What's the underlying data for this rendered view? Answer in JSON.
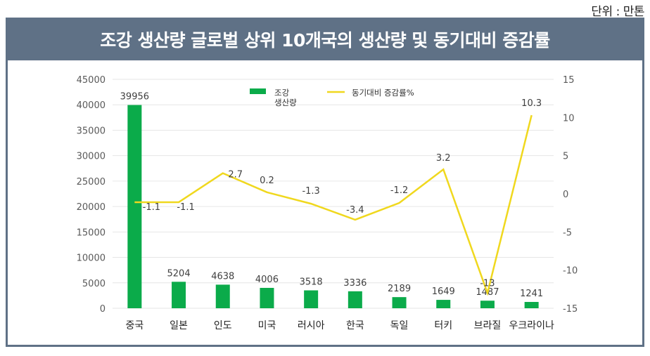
{
  "unit_label": "단위 : 만톤",
  "title": "조강 생산량 글로벌 상위 10개국의 생산량 및 동기대비 증감률",
  "colors": {
    "frame": "#5f7186",
    "bar": "#0bab4a",
    "line": "#f0d81e",
    "grid": "#e6e6e6"
  },
  "chart_data": {
    "type": "bar+line",
    "title": "조강 생산량 글로벌 상위 10개국의 생산량 및 동기대비 증감률",
    "categories": [
      "중국",
      "일본",
      "인도",
      "미국",
      "러시아",
      "한국",
      "독일",
      "터키",
      "브라질",
      "우크라이나"
    ],
    "series": [
      {
        "name": "조강 생산량",
        "type": "bar",
        "axis": "left",
        "values": [
          39956,
          5204,
          4638,
          4006,
          3518,
          3336,
          2189,
          1649,
          1487,
          1241
        ],
        "labels": [
          "39956",
          "5204",
          "4638",
          "4006",
          "3518",
          "3336",
          "2189",
          "1649",
          "1487",
          "1241"
        ]
      },
      {
        "name": "동기대비 증감률%",
        "type": "line",
        "axis": "right",
        "values": [
          -1.1,
          -1.1,
          2.7,
          0.2,
          -1.3,
          -3.4,
          -1.2,
          3.2,
          -13,
          10.3
        ],
        "labels": [
          "-1.1",
          "-1.1",
          "2.7",
          "0.2",
          "-1.3",
          "-3.4",
          "-1.2",
          "3.2",
          "-13",
          "10.3"
        ]
      }
    ],
    "y_left": {
      "min": 0,
      "max": 45000,
      "step": 5000,
      "ticks": [
        "0",
        "5000",
        "10000",
        "15000",
        "20000",
        "25000",
        "30000",
        "35000",
        "40000",
        "45000"
      ]
    },
    "y_right": {
      "min": -15,
      "max": 15,
      "step": 5,
      "ticks": [
        "-15",
        "-10",
        "-5",
        "0",
        "5",
        "10",
        "15"
      ]
    },
    "legend": {
      "position": "top-center",
      "items": [
        {
          "label_lines": [
            "조강",
            "생산량"
          ],
          "kind": "bar"
        },
        {
          "label_lines": [
            "동기대비 증감률%"
          ],
          "kind": "line"
        }
      ]
    },
    "grid": true,
    "xlabel": "",
    "ylabel": ""
  }
}
